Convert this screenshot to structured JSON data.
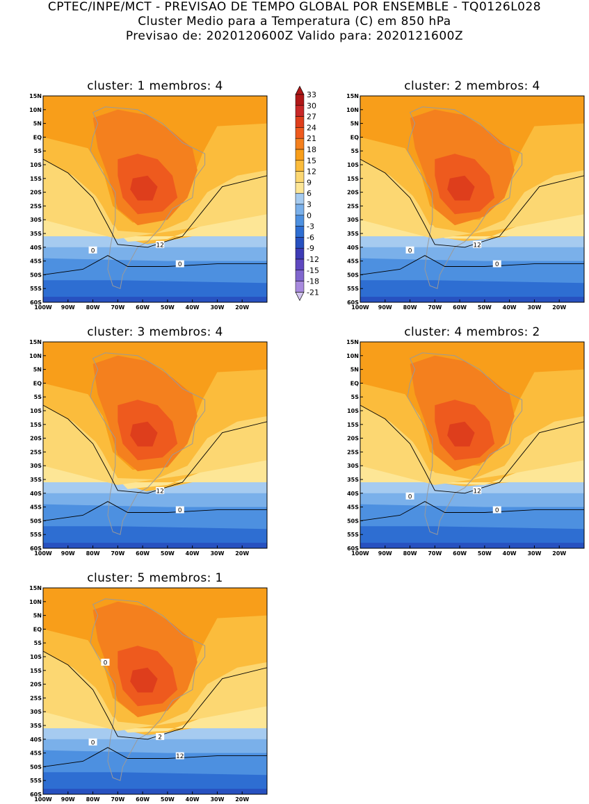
{
  "header": {
    "line1": "CPTEC/INPE/MCT - PREVISAO DE TEMPO GLOBAL POR ENSEMBLE - TQ0126L028",
    "line2": "Cluster Medio para a Temperatura (C) em 850 hPa",
    "line3": "Previsao de: 2020120600Z    Valido para: 2020121600Z"
  },
  "panels": [
    {
      "title": "cluster: 1   membros: 4"
    },
    {
      "title": "cluster: 2   membros: 4"
    },
    {
      "title": "cluster: 3   membros: 4"
    },
    {
      "title": "cluster: 4   membros: 2"
    },
    {
      "title": "cluster: 5   membros: 1"
    }
  ],
  "chart_data": {
    "type": "heatmap",
    "variable": "Temperature (C) at 850 hPa",
    "x_ticks": [
      "100W",
      "90W",
      "80W",
      "70W",
      "60W",
      "50W",
      "40W",
      "30W",
      "20W"
    ],
    "y_ticks": [
      "15N",
      "10N",
      "5N",
      "EQ",
      "5S",
      "10S",
      "15S",
      "20S",
      "25S",
      "30S",
      "35S",
      "40S",
      "45S",
      "50S",
      "55S",
      "60S"
    ],
    "xlim": [
      -100,
      -10
    ],
    "ylim": [
      -60,
      15
    ],
    "colorbar": {
      "levels": [
        33,
        30,
        27,
        24,
        21,
        18,
        15,
        12,
        9,
        6,
        3,
        0,
        -3,
        -6,
        -9,
        -12,
        -15,
        -18,
        -21
      ],
      "labels": [
        "33",
        "30",
        "27",
        "24",
        "21",
        "18",
        "15",
        "12",
        "9",
        "6",
        "3",
        "0",
        "-3",
        "-6",
        "-9",
        "-12",
        "-15",
        "-18",
        "-21"
      ],
      "colors": [
        "#b01818",
        "#c82828",
        "#de3e1c",
        "#ee5a1e",
        "#f4801e",
        "#f89e1a",
        "#fbbc3c",
        "#fcd772",
        "#fde696",
        "#a6cbf0",
        "#7ab0ea",
        "#4d90e0",
        "#2e6ed2",
        "#2751c0",
        "#3e3cb6",
        "#5f48c0",
        "#8066ce",
        "#a88ade",
        "#d4c6f0"
      ]
    },
    "contour_labels": [
      {
        "panel": 0,
        "labels": [
          "12",
          "0",
          "0"
        ]
      },
      {
        "panel": 1,
        "labels": [
          "12",
          "0",
          "0"
        ]
      },
      {
        "panel": 2,
        "labels": [
          "12",
          "0"
        ]
      },
      {
        "panel": 3,
        "labels": [
          "12",
          "0",
          "0"
        ]
      },
      {
        "panel": 4,
        "labels": [
          "2",
          "12",
          "0",
          "0"
        ]
      }
    ]
  }
}
